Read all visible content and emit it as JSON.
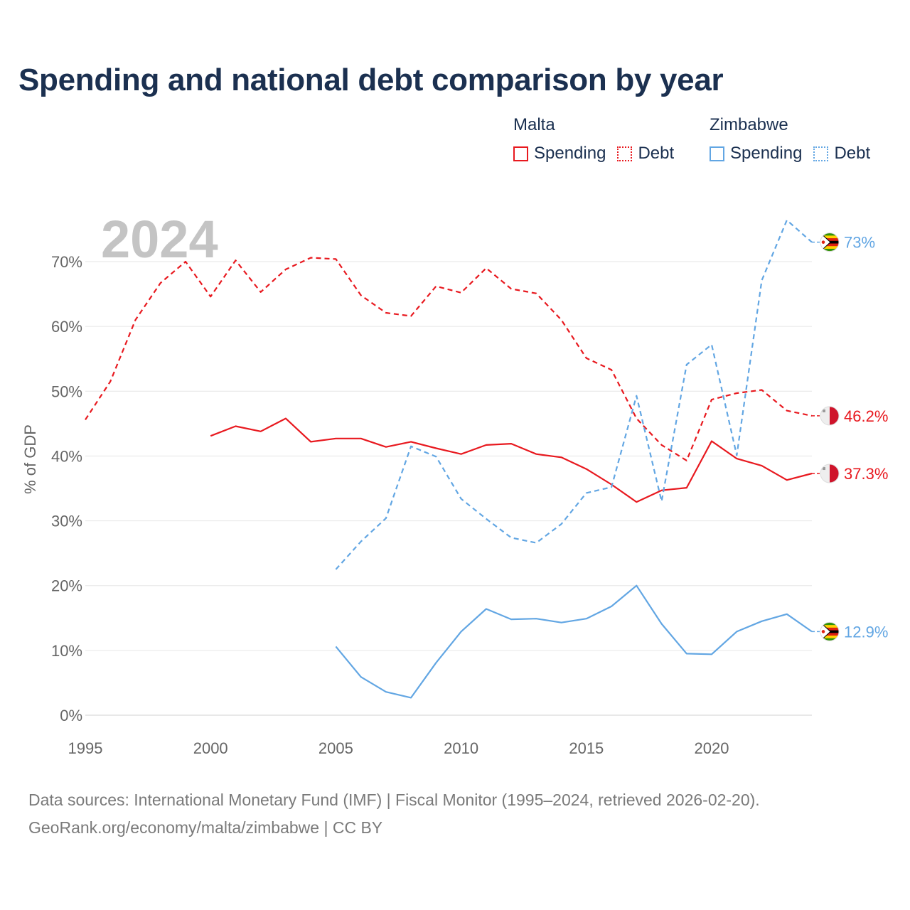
{
  "title": "Spending and national debt comparison by year",
  "legend": {
    "groups": [
      {
        "name": "Malta",
        "color": "#e8191f",
        "items": [
          {
            "label": "Spending",
            "style": "solid"
          },
          {
            "label": "Debt",
            "style": "dotted"
          }
        ]
      },
      {
        "name": "Zimbabwe",
        "color": "#62a6e3",
        "items": [
          {
            "label": "Spending",
            "style": "solid"
          },
          {
            "label": "Debt",
            "style": "dotted"
          }
        ]
      }
    ]
  },
  "footer": {
    "line1": "Data sources: International Monetary Fund (IMF) | Fiscal Monitor (1995–2024, retrieved 2026-02-20).",
    "line2": "GeoRank.org/economy/malta/zimbabwe | CC BY"
  },
  "chart_data": {
    "type": "line",
    "year_watermark": "2024",
    "ylabel": "% of GDP",
    "xlim": [
      1995,
      2024
    ],
    "ylim": [
      0,
      75
    ],
    "xticks": [
      1995,
      2000,
      2005,
      2010,
      2015,
      2020
    ],
    "yticks": [
      0,
      10,
      20,
      30,
      40,
      50,
      60,
      70
    ],
    "ytick_labels": [
      "0%",
      "10%",
      "20%",
      "30%",
      "40%",
      "50%",
      "60%",
      "70%"
    ],
    "series": [
      {
        "name": "Malta Debt",
        "country": "Malta",
        "metric": "Debt",
        "color": "#e8191f",
        "dash": true,
        "end_label": "46.2%",
        "x": [
          1995,
          1996,
          1997,
          1998,
          1999,
          2000,
          2001,
          2002,
          2003,
          2004,
          2005,
          2006,
          2007,
          2008,
          2009,
          2010,
          2011,
          2012,
          2013,
          2014,
          2015,
          2016,
          2017,
          2018,
          2019,
          2020,
          2021,
          2022,
          2023,
          2024
        ],
        "values": [
          45.6,
          51.5,
          61.0,
          66.7,
          70.0,
          64.6,
          70.2,
          65.3,
          68.8,
          70.6,
          70.4,
          64.8,
          62.1,
          61.6,
          66.2,
          65.2,
          69.0,
          65.8,
          65.1,
          61.0,
          55.1,
          53.3,
          45.8,
          41.7,
          39.3,
          48.7,
          49.7,
          50.2,
          47.0,
          46.2
        ]
      },
      {
        "name": "Malta Spending",
        "country": "Malta",
        "metric": "Spending",
        "color": "#e8191f",
        "dash": false,
        "end_label": "37.3%",
        "x": [
          2000,
          2001,
          2002,
          2003,
          2004,
          2005,
          2006,
          2007,
          2008,
          2009,
          2010,
          2011,
          2012,
          2013,
          2014,
          2015,
          2016,
          2017,
          2018,
          2019,
          2020,
          2021,
          2022,
          2023,
          2024
        ],
        "values": [
          43.1,
          44.6,
          43.8,
          45.8,
          42.2,
          42.7,
          42.7,
          41.4,
          42.2,
          41.2,
          40.3,
          41.7,
          41.9,
          40.3,
          39.8,
          38.0,
          35.6,
          32.9,
          34.7,
          35.1,
          42.3,
          39.6,
          38.5,
          36.3,
          37.3
        ]
      },
      {
        "name": "Zimbabwe Debt",
        "country": "Zimbabwe",
        "metric": "Debt",
        "color": "#62a6e3",
        "dash": true,
        "end_label": "73%",
        "x": [
          2005,
          2006,
          2007,
          2008,
          2009,
          2010,
          2011,
          2012,
          2013,
          2014,
          2015,
          2016,
          2017,
          2018,
          2019,
          2020,
          2021,
          2022,
          2023,
          2024
        ],
        "values": [
          22.5,
          26.8,
          30.4,
          41.5,
          39.9,
          33.4,
          30.3,
          27.4,
          26.6,
          29.5,
          34.3,
          35.2,
          49.3,
          33.0,
          54.1,
          57.2,
          40.1,
          67.1,
          76.4,
          73.0
        ]
      },
      {
        "name": "Zimbabwe Spending",
        "country": "Zimbabwe",
        "metric": "Spending",
        "color": "#62a6e3",
        "dash": false,
        "end_label": "12.9%",
        "x": [
          2005,
          2006,
          2007,
          2008,
          2009,
          2010,
          2011,
          2012,
          2013,
          2014,
          2015,
          2016,
          2017,
          2018,
          2019,
          2020,
          2021,
          2022,
          2023,
          2024
        ],
        "values": [
          10.6,
          5.9,
          3.6,
          2.7,
          8.1,
          12.9,
          16.4,
          14.8,
          14.9,
          14.3,
          14.9,
          16.8,
          20.0,
          14.1,
          9.5,
          9.4,
          12.9,
          14.5,
          15.6,
          12.9
        ]
      }
    ]
  }
}
